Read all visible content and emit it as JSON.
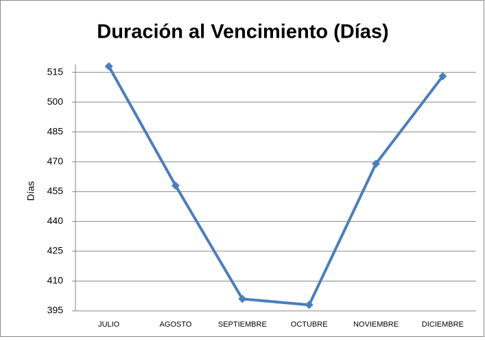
{
  "chart_data": {
    "type": "line",
    "title": "Duración al Vencimiento (Días)",
    "y_label": "Días",
    "categories": [
      "JULIO",
      "AGOSTO",
      "SEPTIEMBRE",
      "OCTUBRE",
      "NOVIEMBRE",
      "DICIEMBRE"
    ],
    "series": [
      {
        "name": "Días",
        "color": "#4a7ebb",
        "values": [
          518,
          458,
          401,
          398,
          469,
          513
        ]
      }
    ],
    "ylim": [
      395,
      519
    ],
    "yticks": [
      395,
      410,
      425,
      440,
      455,
      470,
      485,
      500,
      515
    ],
    "grid": true
  }
}
